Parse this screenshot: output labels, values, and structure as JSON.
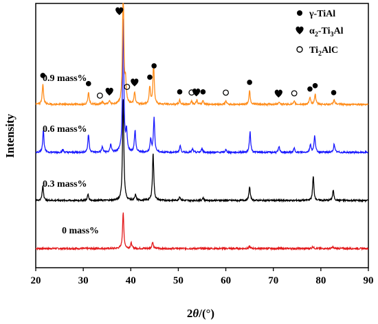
{
  "chart_data": {
    "type": "line",
    "xlabel": "2θ/(°)",
    "ylabel": "Intensity",
    "xlim": [
      20,
      90
    ],
    "x_ticks": [
      20,
      30,
      40,
      50,
      60,
      70,
      80,
      90
    ],
    "y_ticks_shown": false,
    "grid": false,
    "legend_position": "top-right",
    "legend": [
      {
        "marker": "filled-circle",
        "label": "γ-TiAl"
      },
      {
        "marker": "heart",
        "label": "α2-Ti3Al"
      },
      {
        "marker": "open-circle",
        "label": "Ti2AlC"
      }
    ],
    "series": [
      {
        "name": "0 mass%",
        "color": "#e31a1c",
        "offset": 0,
        "peaks": [
          [
            38.4,
            52
          ],
          [
            40.1,
            8
          ],
          [
            44.6,
            10
          ],
          [
            65.0,
            3
          ],
          [
            78.3,
            3
          ],
          [
            82.5,
            2
          ]
        ]
      },
      {
        "name": "0.3 mass%",
        "color": "#000000",
        "offset": 70,
        "peaks": [
          [
            21.5,
            22
          ],
          [
            31.0,
            9
          ],
          [
            38.4,
            150
          ],
          [
            41.0,
            8
          ],
          [
            44.7,
            70
          ],
          [
            50.3,
            6
          ],
          [
            55.2,
            4
          ],
          [
            65.0,
            20
          ],
          [
            78.4,
            35
          ],
          [
            82.6,
            15
          ]
        ]
      },
      {
        "name": "0.6 mass%",
        "color": "#1a1aff",
        "offset": 140,
        "peaks": [
          [
            21.6,
            33
          ],
          [
            25.7,
            4
          ],
          [
            31.1,
            26
          ],
          [
            34.0,
            8
          ],
          [
            35.8,
            12
          ],
          [
            38.4,
            195
          ],
          [
            39.1,
            30
          ],
          [
            40.9,
            32
          ],
          [
            44.2,
            20
          ],
          [
            44.9,
            50
          ],
          [
            50.4,
            10
          ],
          [
            53.0,
            5
          ],
          [
            55.0,
            6
          ],
          [
            60.0,
            4
          ],
          [
            65.1,
            30
          ],
          [
            71.2,
            8
          ],
          [
            74.4,
            6
          ],
          [
            77.8,
            12
          ],
          [
            78.7,
            25
          ],
          [
            82.8,
            12
          ]
        ]
      },
      {
        "name": "0.9 mass%",
        "color": "#ff8c1a",
        "offset": 210,
        "peaks": [
          [
            21.5,
            30
          ],
          [
            31.1,
            18
          ],
          [
            34.0,
            4
          ],
          [
            35.5,
            5
          ],
          [
            38.4,
            170
          ],
          [
            38.9,
            30
          ],
          [
            40.8,
            18
          ],
          [
            44.0,
            25
          ],
          [
            44.8,
            60
          ],
          [
            50.3,
            6
          ],
          [
            52.8,
            5
          ],
          [
            53.9,
            6
          ],
          [
            55.2,
            6
          ],
          [
            60.0,
            5
          ],
          [
            65.0,
            20
          ],
          [
            71.2,
            4
          ],
          [
            74.4,
            4
          ],
          [
            77.7,
            10
          ],
          [
            78.8,
            15
          ],
          [
            82.8,
            7
          ]
        ]
      }
    ],
    "annotations": [
      {
        "marker": "filled-circle",
        "x": 21.5
      },
      {
        "marker": "filled-circle",
        "x": 31.1
      },
      {
        "marker": "open-circle",
        "x": 33.5
      },
      {
        "marker": "heart",
        "x": 35.5
      },
      {
        "marker": "heart",
        "x": 37.6
      },
      {
        "marker": "open-circle",
        "x": 39.2
      },
      {
        "marker": "heart",
        "x": 40.8
      },
      {
        "marker": "filled-circle",
        "x": 44.0
      },
      {
        "marker": "filled-circle",
        "x": 44.9
      },
      {
        "marker": "filled-circle",
        "x": 50.3
      },
      {
        "marker": "open-circle",
        "x": 52.8
      },
      {
        "marker": "heart",
        "x": 53.8
      },
      {
        "marker": "filled-circle",
        "x": 55.2
      },
      {
        "marker": "open-circle",
        "x": 60.0
      },
      {
        "marker": "filled-circle",
        "x": 65.0
      },
      {
        "marker": "heart",
        "x": 71.1
      },
      {
        "marker": "open-circle",
        "x": 74.4
      },
      {
        "marker": "filled-circle",
        "x": 77.7
      },
      {
        "marker": "filled-circle",
        "x": 78.8
      },
      {
        "marker": "filled-circle",
        "x": 82.7
      }
    ]
  }
}
